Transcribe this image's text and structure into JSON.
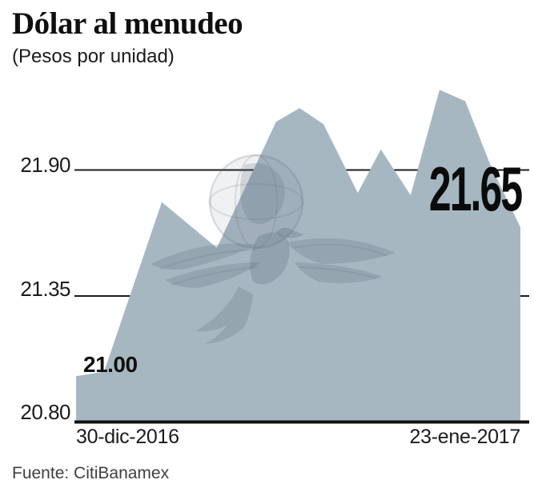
{
  "header": {
    "title": "Dólar al menudeo",
    "subtitle": "(Pesos por unidad)"
  },
  "footer": {
    "source": "Fuente: CitiBanamex"
  },
  "watermark": {
    "description": "eagle-over-globe-logo-watermark"
  },
  "chart_data": {
    "type": "area",
    "title": "Dólar al menudeo",
    "units": "Pesos por unidad",
    "x_start_label": "30-dic-2016",
    "x_end_label": "23-ene-2017",
    "ylim": [
      20.8,
      22.35
    ],
    "yticks": [
      {
        "value": 20.8,
        "label": "20.80"
      },
      {
        "value": 21.35,
        "label": "21.35"
      },
      {
        "value": 21.9,
        "label": "21.90"
      }
    ],
    "grid": "horizontal-lines",
    "legend": "none",
    "annotations": {
      "start": {
        "label": "21.00",
        "value": 21.0
      },
      "end": {
        "label": "21.65",
        "value": 21.65
      }
    },
    "series": [
      {
        "name": "Dólar al menudeo (pesos por unidad)",
        "points": [
          {
            "t": 0.0,
            "v": 21.0
          },
          {
            "t": 0.063,
            "v": 21.02
          },
          {
            "t": 0.193,
            "v": 21.76
          },
          {
            "t": 0.317,
            "v": 21.56
          },
          {
            "t": 0.45,
            "v": 22.11
          },
          {
            "t": 0.503,
            "v": 22.17
          },
          {
            "t": 0.557,
            "v": 22.1
          },
          {
            "t": 0.634,
            "v": 21.8
          },
          {
            "t": 0.686,
            "v": 21.99
          },
          {
            "t": 0.753,
            "v": 21.79
          },
          {
            "t": 0.818,
            "v": 22.25
          },
          {
            "t": 0.876,
            "v": 22.2
          },
          {
            "t": 0.933,
            "v": 21.92
          },
          {
            "t": 1.0,
            "v": 21.65
          }
        ]
      }
    ],
    "colors": {
      "area_fill": "#a7b7c2",
      "axis_line": "#111111",
      "gridline": "#1c1c1c",
      "text": "#1b1b1b",
      "source_text": "#3f3f3f",
      "watermark": "#546674"
    }
  }
}
